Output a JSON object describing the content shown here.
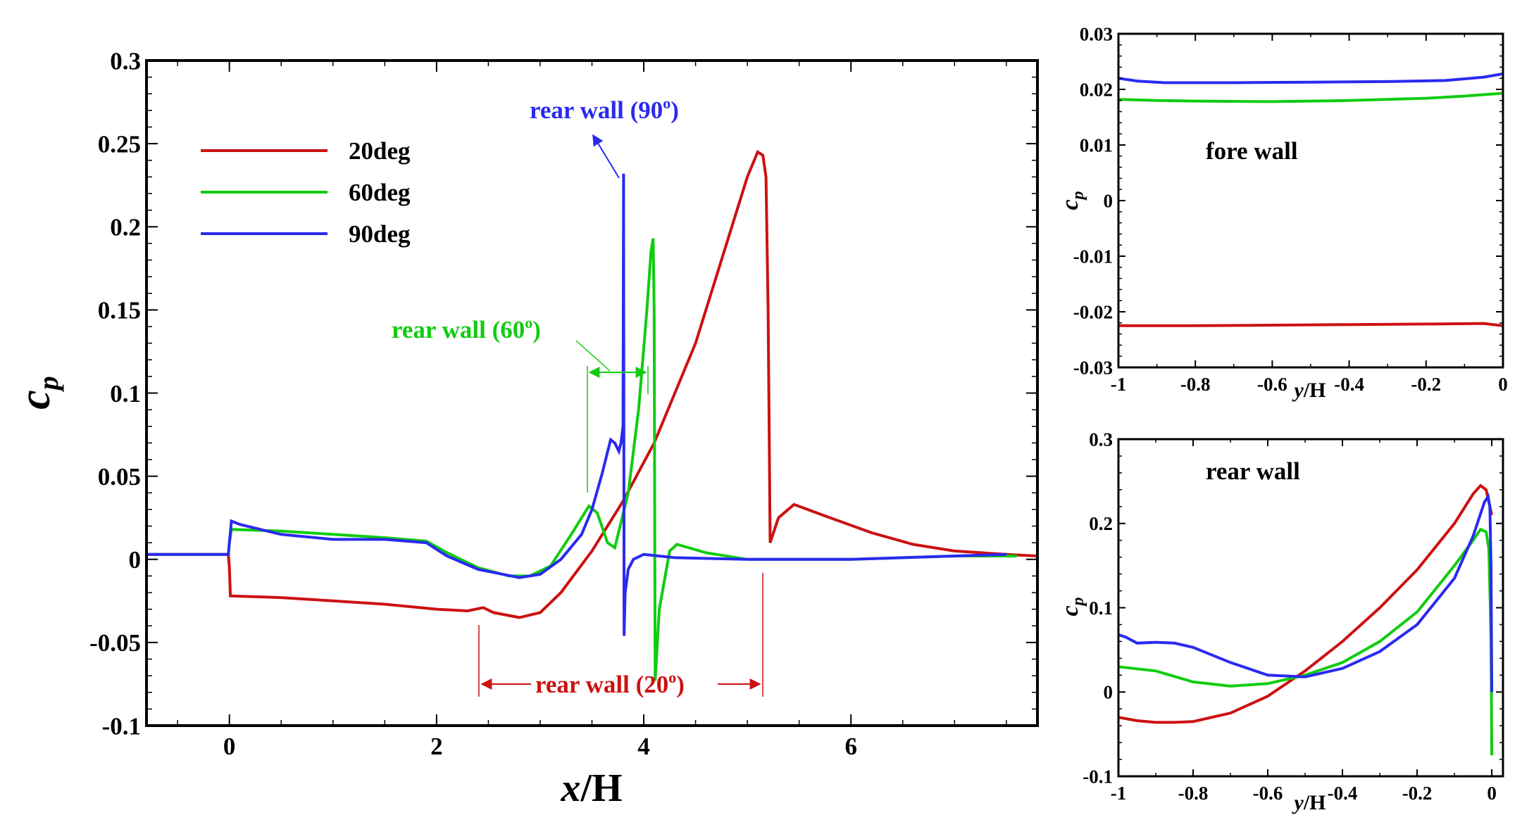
{
  "colors": {
    "deg20": "#cc1111",
    "deg60": "#11cc11",
    "deg90": "#2a2af0",
    "axis": "#000000"
  },
  "chart_data": [
    {
      "id": "main",
      "type": "line",
      "title": "",
      "xlabel_italic": "x",
      "xlabel_rest": "/H",
      "ylabel_main": "c",
      "ylabel_sub": "p",
      "xlim": [
        -0.8,
        7.8
      ],
      "ylim": [
        -0.1,
        0.3
      ],
      "xticks": [
        0,
        2,
        4,
        6
      ],
      "xtick_labels": [
        "0",
        "2",
        "4",
        "6"
      ],
      "yticks": [
        -0.1,
        -0.05,
        0,
        0.05,
        0.1,
        0.15,
        0.2,
        0.25,
        0.3
      ],
      "ytick_labels": [
        "-0.1",
        "-0.05",
        "0",
        "0.05",
        "0.1",
        "0.15",
        "0.2",
        "0.25",
        "0.3"
      ],
      "legend": {
        "position": "top-left",
        "entries": [
          "20deg",
          "60deg",
          "90deg"
        ]
      },
      "annotations": {
        "rear90": "rear wall (90",
        "rear60": "rear wall (60",
        "rear20": "rear wall (20",
        "degree_sup": "o",
        "close_paren": ")"
      },
      "series": [
        {
          "name": "20deg",
          "color_key": "deg20",
          "x": [
            -0.8,
            -0.01,
            0.0,
            0.01,
            0.5,
            1.0,
            1.5,
            2.0,
            2.3,
            2.45,
            2.55,
            2.8,
            3.0,
            3.2,
            3.5,
            3.8,
            4.1,
            4.5,
            4.8,
            5.0,
            5.1,
            5.15,
            5.18,
            5.2,
            5.22,
            5.3,
            5.45,
            5.8,
            6.2,
            6.6,
            7.0,
            7.5,
            7.8
          ],
          "y": [
            0.003,
            0.003,
            -0.005,
            -0.022,
            -0.023,
            -0.025,
            -0.027,
            -0.03,
            -0.031,
            -0.029,
            -0.032,
            -0.035,
            -0.032,
            -0.02,
            0.005,
            0.035,
            0.07,
            0.13,
            0.19,
            0.23,
            0.245,
            0.243,
            0.23,
            0.15,
            0.01,
            0.025,
            0.033,
            0.025,
            0.016,
            0.009,
            0.005,
            0.003,
            0.002
          ]
        },
        {
          "name": "60deg",
          "color_key": "deg60",
          "x": [
            -0.8,
            -0.01,
            0.0,
            0.02,
            0.5,
            1.0,
            1.5,
            1.9,
            2.1,
            2.4,
            2.7,
            2.9,
            3.1,
            3.3,
            3.47,
            3.55,
            3.65,
            3.72,
            3.85,
            3.95,
            4.03,
            4.07,
            4.09,
            4.1,
            4.11,
            4.15,
            4.25,
            4.32,
            4.6,
            5.0,
            6.0,
            7.0,
            7.6
          ],
          "y": [
            0.003,
            0.003,
            0.01,
            0.018,
            0.017,
            0.015,
            0.013,
            0.011,
            0.004,
            -0.005,
            -0.01,
            -0.01,
            -0.004,
            0.015,
            0.032,
            0.028,
            0.01,
            0.007,
            0.04,
            0.09,
            0.15,
            0.185,
            0.193,
            0.15,
            -0.073,
            -0.03,
            0.005,
            0.009,
            0.004,
            0.0,
            0.0,
            0.002,
            0.002
          ]
        },
        {
          "name": "90deg",
          "color_key": "deg90",
          "x": [
            -0.8,
            -0.01,
            0.0,
            0.02,
            0.1,
            0.5,
            1.0,
            1.5,
            1.9,
            2.1,
            2.4,
            2.8,
            3.0,
            3.2,
            3.4,
            3.5,
            3.6,
            3.68,
            3.72,
            3.76,
            3.78,
            3.8,
            3.805,
            3.81,
            3.82,
            3.85,
            3.9,
            4.0,
            4.3,
            5.0,
            6.0,
            7.0,
            7.5
          ],
          "y": [
            0.003,
            0.003,
            0.01,
            0.023,
            0.021,
            0.015,
            0.012,
            0.012,
            0.01,
            0.002,
            -0.006,
            -0.011,
            -0.009,
            0.0,
            0.015,
            0.03,
            0.052,
            0.072,
            0.07,
            0.065,
            0.07,
            0.08,
            0.232,
            -0.046,
            -0.02,
            -0.006,
            0.0,
            0.003,
            0.001,
            0.0,
            0.0,
            0.002,
            0.003
          ]
        }
      ]
    },
    {
      "id": "fore",
      "type": "line",
      "title": "fore wall",
      "xlabel_italic": "y",
      "xlabel_rest": "/H",
      "ylabel_main": "c",
      "ylabel_sub": "p",
      "xlim": [
        -1,
        0
      ],
      "ylim": [
        -0.03,
        0.03
      ],
      "xticks": [
        -1,
        -0.8,
        -0.6,
        -0.4,
        -0.2,
        0
      ],
      "xtick_labels": [
        "-1",
        "-0.8",
        "-0.6",
        "-0.4",
        "-0.2",
        "0"
      ],
      "yticks": [
        -0.03,
        -0.02,
        -0.01,
        0,
        0.01,
        0.02,
        0.03
      ],
      "ytick_labels": [
        "-0.03",
        "-0.02",
        "-0.01",
        "0",
        "0.01",
        "0.02",
        "0.03"
      ],
      "series": [
        {
          "name": "20deg",
          "color_key": "deg20",
          "x": [
            -1,
            -0.8,
            -0.6,
            -0.4,
            -0.2,
            -0.05,
            0
          ],
          "y": [
            -0.0225,
            -0.0225,
            -0.0224,
            -0.0223,
            -0.0222,
            -0.0221,
            -0.0225
          ]
        },
        {
          "name": "60deg",
          "color_key": "deg60",
          "x": [
            -1,
            -0.9,
            -0.8,
            -0.6,
            -0.4,
            -0.2,
            -0.1,
            0
          ],
          "y": [
            0.0182,
            0.018,
            0.0179,
            0.0178,
            0.018,
            0.0184,
            0.0188,
            0.0193
          ]
        },
        {
          "name": "90deg",
          "color_key": "deg90",
          "x": [
            -1,
            -0.95,
            -0.88,
            -0.7,
            -0.5,
            -0.3,
            -0.15,
            -0.05,
            0
          ],
          "y": [
            0.022,
            0.0215,
            0.0212,
            0.0212,
            0.0213,
            0.0214,
            0.0216,
            0.0222,
            0.0228
          ]
        }
      ]
    },
    {
      "id": "rear",
      "type": "line",
      "title": "rear wall",
      "xlabel_italic": "y",
      "xlabel_rest": "/H",
      "ylabel_main": "c",
      "ylabel_sub": "p",
      "xlim": [
        -1,
        0.03
      ],
      "ylim": [
        -0.1,
        0.3
      ],
      "xticks": [
        -1,
        -0.8,
        -0.6,
        -0.4,
        -0.2,
        0
      ],
      "xtick_labels": [
        "-1",
        "-0.8",
        "-0.6",
        "-0.4",
        "-0.2",
        "0"
      ],
      "yticks": [
        -0.1,
        0,
        0.1,
        0.2,
        0.3
      ],
      "ytick_labels": [
        "-0.1",
        "0",
        "0.1",
        "0.2",
        "0.3"
      ],
      "series": [
        {
          "name": "20deg",
          "color_key": "deg20",
          "x": [
            -1,
            -0.95,
            -0.9,
            -0.85,
            -0.8,
            -0.7,
            -0.6,
            -0.5,
            -0.4,
            -0.3,
            -0.2,
            -0.1,
            -0.05,
            -0.03,
            -0.015,
            -0.005,
            0
          ],
          "y": [
            -0.03,
            -0.034,
            -0.036,
            -0.036,
            -0.035,
            -0.025,
            -0.005,
            0.025,
            0.06,
            0.1,
            0.145,
            0.2,
            0.235,
            0.245,
            0.24,
            0.22,
            0.21
          ]
        },
        {
          "name": "60deg",
          "color_key": "deg60",
          "x": [
            -1,
            -0.9,
            -0.8,
            -0.7,
            -0.6,
            -0.5,
            -0.4,
            -0.3,
            -0.2,
            -0.1,
            -0.05,
            -0.03,
            -0.015,
            -0.008,
            -0.004,
            -0.002,
            0
          ],
          "y": [
            0.03,
            0.025,
            0.012,
            0.007,
            0.01,
            0.02,
            0.035,
            0.06,
            0.095,
            0.15,
            0.18,
            0.193,
            0.19,
            0.17,
            0.1,
            0.06,
            -0.075
          ]
        },
        {
          "name": "90deg",
          "color_key": "deg90",
          "x": [
            -1,
            -0.98,
            -0.95,
            -0.9,
            -0.85,
            -0.8,
            -0.7,
            -0.6,
            -0.5,
            -0.4,
            -0.3,
            -0.2,
            -0.1,
            -0.05,
            -0.02,
            -0.01,
            -0.005,
            -0.002,
            0
          ],
          "y": [
            0.068,
            0.065,
            0.058,
            0.059,
            0.058,
            0.053,
            0.035,
            0.02,
            0.018,
            0.028,
            0.048,
            0.08,
            0.135,
            0.185,
            0.225,
            0.232,
            0.22,
            0.15,
            0.0
          ]
        }
      ]
    }
  ]
}
